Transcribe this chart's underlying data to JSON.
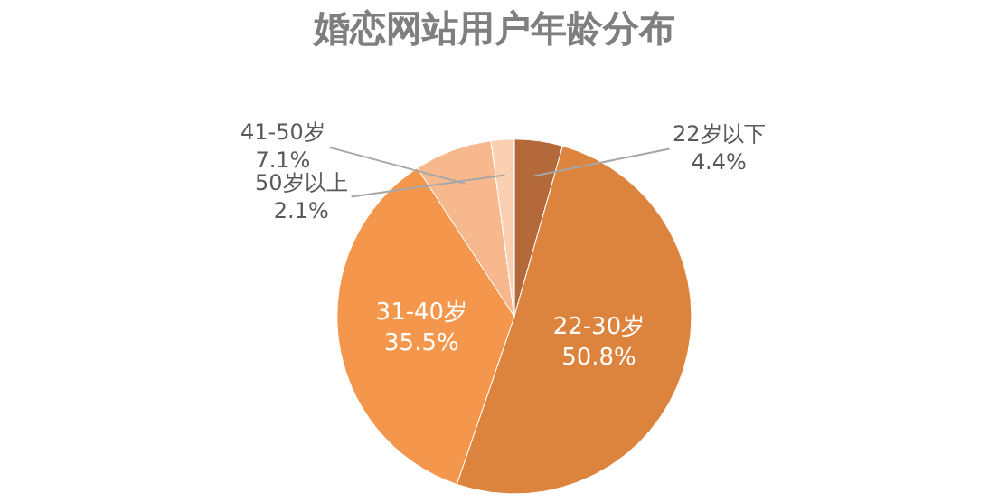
{
  "chart_data": {
    "type": "pie",
    "title": "婚恋网站用户年龄分布",
    "categories": [
      "22岁以下",
      "22-30岁",
      "31-40岁",
      "41-50岁",
      "50岁以上"
    ],
    "values": [
      4.4,
      50.8,
      35.5,
      7.1,
      2.1
    ],
    "value_labels": [
      "4.4%",
      "50.8%",
      "35.5%",
      "7.1%",
      "2.1%"
    ],
    "colors": [
      "#b4693a",
      "#dc843e",
      "#f4974c",
      "#f8b88e",
      "#fbcfb1"
    ],
    "legend": false
  }
}
